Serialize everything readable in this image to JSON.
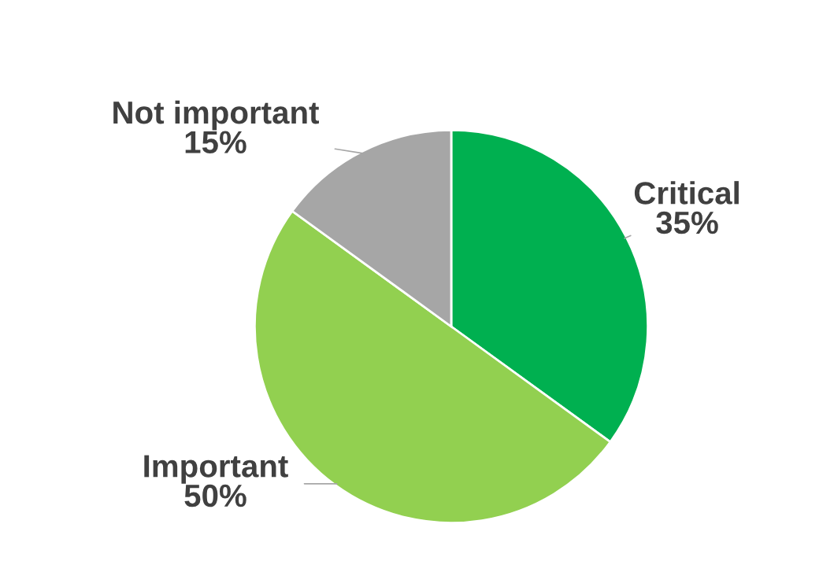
{
  "chart_data": {
    "type": "pie",
    "categories": [
      "Critical",
      "Important",
      "Not important"
    ],
    "values": [
      35,
      50,
      15
    ],
    "colors": [
      "#00b050",
      "#92d050",
      "#a6a6a6"
    ],
    "value_labels": [
      "35%",
      "50%",
      "15%"
    ],
    "legend": false
  }
}
